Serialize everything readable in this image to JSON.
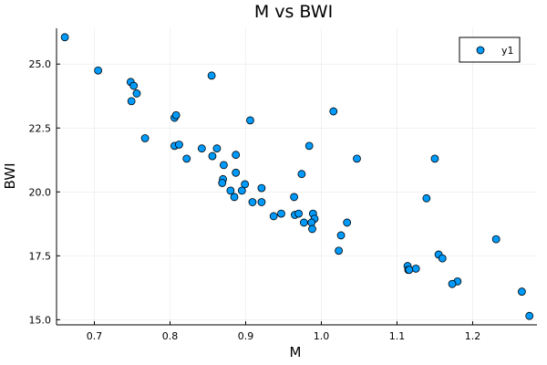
{
  "chart_data": {
    "type": "scatter",
    "title": "M vs BWI",
    "xlabel": "M",
    "ylabel": "BWI",
    "xlim": [
      0.65,
      1.285
    ],
    "ylim": [
      14.8,
      26.4
    ],
    "xticks": [
      0.7,
      0.8,
      0.9,
      1.0,
      1.1,
      1.2
    ],
    "xtick_labels": [
      "0.7",
      "0.8",
      "0.9",
      "1.0",
      "1.1",
      "1.2"
    ],
    "yticks": [
      15.0,
      17.5,
      20.0,
      22.5,
      25.0
    ],
    "ytick_labels": [
      "15.0",
      "17.5",
      "20.0",
      "22.5",
      "25.0"
    ],
    "grid": true,
    "legend": "top-right",
    "colors": {
      "marker": "#009AFA",
      "marker_edge": "#000000",
      "axis": "#000000"
    },
    "series": [
      {
        "name": "y1",
        "points": [
          [
            0.661,
            26.05
          ],
          [
            0.705,
            24.75
          ],
          [
            0.748,
            24.3
          ],
          [
            0.752,
            24.15
          ],
          [
            0.756,
            23.85
          ],
          [
            0.749,
            23.55
          ],
          [
            0.767,
            22.1
          ],
          [
            0.806,
            22.9
          ],
          [
            0.808,
            23.0
          ],
          [
            0.855,
            24.55
          ],
          [
            0.906,
            22.8
          ],
          [
            1.016,
            23.15
          ],
          [
            0.806,
            21.8
          ],
          [
            0.812,
            21.85
          ],
          [
            0.822,
            21.3
          ],
          [
            0.842,
            21.7
          ],
          [
            0.856,
            21.4
          ],
          [
            0.862,
            21.7
          ],
          [
            0.887,
            21.45
          ],
          [
            0.871,
            21.05
          ],
          [
            0.887,
            20.75
          ],
          [
            0.87,
            20.5
          ],
          [
            0.869,
            20.35
          ],
          [
            0.899,
            20.3
          ],
          [
            0.88,
            20.05
          ],
          [
            0.895,
            20.05
          ],
          [
            0.921,
            20.15
          ],
          [
            0.885,
            19.8
          ],
          [
            0.909,
            19.6
          ],
          [
            0.921,
            19.6
          ],
          [
            0.984,
            21.8
          ],
          [
            0.974,
            20.7
          ],
          [
            1.047,
            21.3
          ],
          [
            1.15,
            21.3
          ],
          [
            1.139,
            19.75
          ],
          [
            0.964,
            19.8
          ],
          [
            0.947,
            19.15
          ],
          [
            0.937,
            19.05
          ],
          [
            0.965,
            19.1
          ],
          [
            0.97,
            19.15
          ],
          [
            0.989,
            19.15
          ],
          [
            0.991,
            18.95
          ],
          [
            0.977,
            18.8
          ],
          [
            0.987,
            18.8
          ],
          [
            1.034,
            18.8
          ],
          [
            0.988,
            18.55
          ],
          [
            1.026,
            18.3
          ],
          [
            1.023,
            17.7
          ],
          [
            1.231,
            18.15
          ],
          [
            1.155,
            17.55
          ],
          [
            1.16,
            17.4
          ],
          [
            1.114,
            17.1
          ],
          [
            1.125,
            17.0
          ],
          [
            1.115,
            16.95
          ],
          [
            1.116,
            16.95
          ],
          [
            1.18,
            16.5
          ],
          [
            1.173,
            16.4
          ],
          [
            1.265,
            16.1
          ],
          [
            1.275,
            15.15
          ]
        ]
      }
    ]
  }
}
